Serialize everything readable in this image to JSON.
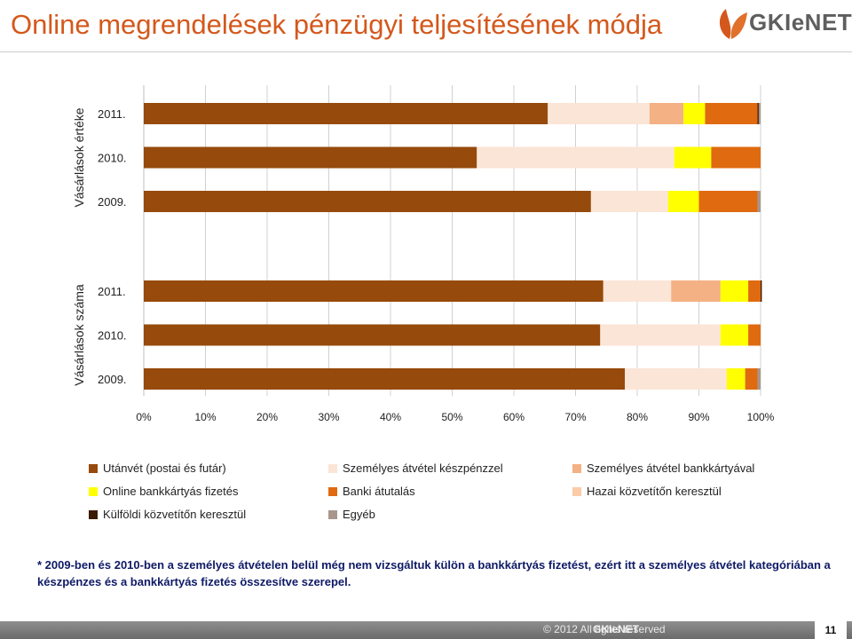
{
  "page": {
    "title": "Online megrendelések pénzügyi teljesítésének módja",
    "logo_text": "GKIeNET",
    "note": "* 2009-ben és 2010-ben a személyes átvételen belül még nem vizsgáltuk külön a bankkártyás fizetést, ezért itt a személyes átvétel kategóriában a készpénzes és a bankkártyás fizetés összesítve szerepel.",
    "footer_text": "© 2012        All rights reserved",
    "footer_logo_text": "GKIeNET",
    "page_number": "11"
  },
  "chart_data": {
    "type": "bar",
    "orientation": "horizontal",
    "stacked": "percent",
    "xlim": [
      0,
      100
    ],
    "x_ticks": [
      "0%",
      "10%",
      "20%",
      "30%",
      "40%",
      "50%",
      "60%",
      "70%",
      "80%",
      "90%",
      "100%"
    ],
    "grid": true,
    "legend_position": "bottom",
    "groups": [
      {
        "label": "Vásárlások értéke",
        "categories": [
          "2011.",
          "2010.",
          "2009."
        ]
      },
      {
        "label": "Vásárlások száma",
        "categories": [
          "2011.",
          "2010.",
          "2009."
        ]
      }
    ],
    "series": [
      {
        "name": "Utánvét (postai és futár)",
        "color": "#964A0B",
        "values": [
          [
            65.5,
            54,
            72.5
          ],
          [
            74.5,
            74,
            78
          ]
        ]
      },
      {
        "name": "Személyes átvétel készpénzzel",
        "color": "#FBE5D6",
        "values": [
          [
            16.5,
            32,
            12.5
          ],
          [
            11,
            19.5,
            16.5
          ]
        ]
      },
      {
        "name": "Személyes átvétel bankkártyával",
        "color": "#F4B183",
        "values": [
          [
            5.5,
            0,
            0
          ],
          [
            8,
            0,
            0
          ]
        ]
      },
      {
        "name": "Online bankkártyás fizetés",
        "color": "#FFFF00",
        "values": [
          [
            3.5,
            6,
            5
          ],
          [
            4.5,
            4.5,
            3
          ]
        ]
      },
      {
        "name": "Banki átutalás",
        "color": "#E06A10",
        "values": [
          [
            8.5,
            8,
            9.5
          ],
          [
            2,
            2,
            2
          ]
        ]
      },
      {
        "name": "Hazai közvetítőn keresztül",
        "color": "#FACCA8",
        "values": [
          [
            0,
            0,
            0
          ],
          [
            0,
            0,
            0
          ]
        ]
      },
      {
        "name": "Külföldi közvetítőn keresztül",
        "color": "#3D1A04",
        "values": [
          [
            0.2,
            0,
            0
          ],
          [
            0.2,
            0,
            0
          ]
        ]
      },
      {
        "name": "Egyéb",
        "color": "#A8968C",
        "values": [
          [
            0.3,
            0,
            0.5
          ],
          [
            0,
            0,
            0.5
          ]
        ]
      }
    ]
  }
}
